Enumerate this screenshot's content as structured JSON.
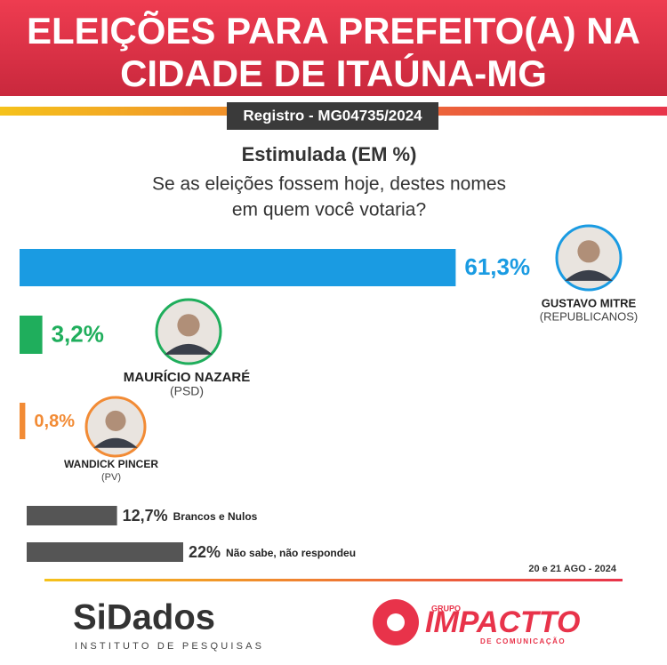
{
  "header": {
    "title_lines": [
      "ELEIÇÕES PARA PREFEITO(A) NA",
      "CIDADE DE ITAÚNA-MG"
    ],
    "registry": "Registro - MG04735/2024"
  },
  "chart_data": [
    {
      "type": "bar",
      "title": "Estimulada (EM %)",
      "subtitle_lines": [
        "Se as eleições fossem hoje, destes nomes",
        "em quem você votaria?"
      ],
      "categories": [
        "GUSTAVO MITRE",
        "MAURÍCIO NAZARÉ",
        "WANDICK PINCER"
      ],
      "parties": [
        "(REPUBLICANOS)",
        "(PSD)",
        "(PV)"
      ],
      "values": [
        61.3,
        3.2,
        0.8
      ],
      "value_labels": [
        "61,3%",
        "3,2%",
        "0,8%"
      ],
      "colors": [
        "#1a9be2",
        "#1fae5c",
        "#f28b35"
      ]
    },
    {
      "type": "bar",
      "categories": [
        "Brancos e Nulos",
        "Não sabe, não respondeu"
      ],
      "values": [
        12.7,
        22
      ],
      "value_labels": [
        "12,7%",
        "22%"
      ],
      "color": "#555555"
    }
  ],
  "footer": {
    "date": "20 e 21 AGO - 2024",
    "logo_left": "SiDados",
    "logo_left_sub": "INSTITUTO DE PESQUISAS",
    "logo_right_top": "GRUPO",
    "logo_right": "IMPACTTO",
    "logo_right_sub": "DE COMUNICAÇÃO"
  }
}
